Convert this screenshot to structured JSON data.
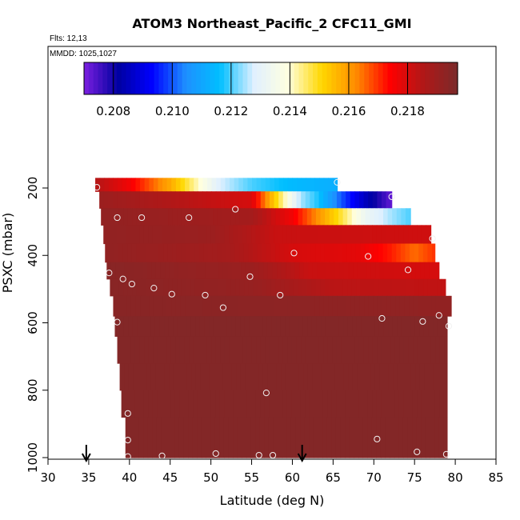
{
  "chart_data": {
    "type": "heatmap",
    "title": "ATOM3 Northeast_Pacific_2 CFC11_GMI",
    "annotations": [
      "Flts: 12,13",
      "MMDD: 1025,1027"
    ],
    "xlabel": "Latitude (deg N)",
    "ylabel": "PSXC (mbar)",
    "xlim": [
      30,
      85
    ],
    "ylim": [
      1000,
      0
    ],
    "xticks": [
      30,
      35,
      40,
      45,
      50,
      55,
      60,
      65,
      70,
      75,
      80,
      85
    ],
    "yticks": [
      200,
      400,
      600,
      800,
      1000
    ],
    "colorbar": {
      "min": 0.207,
      "max": 0.2197,
      "ticks": [
        0.208,
        0.21,
        0.212,
        0.214,
        0.216,
        0.218
      ],
      "tick_labels": [
        "0.208",
        "0.210",
        "0.212",
        "0.214",
        "0.216",
        "0.218"
      ],
      "colors": [
        "#7b1fe0",
        "#0000a0",
        "#0000ff",
        "#1e90ff",
        "#00bfff",
        "#e0f0ff",
        "#ffffe0",
        "#ffd700",
        "#ff8c00",
        "#ff0000",
        "#b01818",
        "#7a2a2a"
      ]
    },
    "flight_markers": [
      34.7,
      61.2
    ],
    "rows": [
      {
        "p_top": 170,
        "p_bot": 210,
        "lat_start": 35.8,
        "lat_end": 65.5,
        "stops": [
          [
            35.8,
            0.2185
          ],
          [
            40,
            0.2176
          ],
          [
            45,
            0.2158
          ],
          [
            48,
            0.2143
          ],
          [
            51,
            0.2128
          ],
          [
            55,
            0.212
          ],
          [
            60,
            0.2115
          ],
          [
            65.5,
            0.2112
          ]
        ]
      },
      {
        "p_top": 210,
        "p_bot": 260,
        "lat_start": 36.3,
        "lat_end": 72.2,
        "stops": [
          [
            36.3,
            0.219
          ],
          [
            55,
            0.218
          ],
          [
            57,
            0.216
          ],
          [
            59,
            0.2142
          ],
          [
            61,
            0.2125
          ],
          [
            63,
            0.2118
          ],
          [
            66,
            0.21
          ],
          [
            69,
            0.2085
          ],
          [
            71.5,
            0.2075
          ],
          [
            72.2,
            0.2072
          ]
        ]
      },
      {
        "p_top": 260,
        "p_bot": 310,
        "lat_start": 36.5,
        "lat_end": 74.5,
        "stops": [
          [
            36.5,
            0.2192
          ],
          [
            55,
            0.2188
          ],
          [
            60,
            0.2176
          ],
          [
            63,
            0.2162
          ],
          [
            66,
            0.2148
          ],
          [
            69,
            0.2132
          ],
          [
            72,
            0.2125
          ],
          [
            74.5,
            0.212
          ]
        ]
      },
      {
        "p_top": 310,
        "p_bot": 365,
        "lat_start": 36.8,
        "lat_end": 77.0,
        "stops": [
          [
            36.8,
            0.2192
          ],
          [
            50,
            0.219
          ],
          [
            58,
            0.2182
          ],
          [
            77.0,
            0.2181
          ]
        ]
      },
      {
        "p_top": 365,
        "p_bot": 420,
        "lat_start": 37.0,
        "lat_end": 77.5,
        "stops": [
          [
            37.0,
            0.2192
          ],
          [
            52,
            0.2188
          ],
          [
            60,
            0.218
          ],
          [
            68,
            0.2178
          ],
          [
            72,
            0.2172
          ],
          [
            75,
            0.2165
          ],
          [
            77.5,
            0.217
          ]
        ]
      },
      {
        "p_top": 420,
        "p_bot": 470,
        "lat_start": 37.2,
        "lat_end": 78.0,
        "stops": [
          [
            37.2,
            0.2194
          ],
          [
            55,
            0.219
          ],
          [
            62,
            0.2182
          ],
          [
            78.0,
            0.218
          ]
        ]
      },
      {
        "p_top": 470,
        "p_bot": 520,
        "lat_start": 37.6,
        "lat_end": 78.8,
        "stops": [
          [
            37.6,
            0.2194
          ],
          [
            55,
            0.2191
          ],
          [
            65,
            0.2184
          ],
          [
            78.8,
            0.2183
          ]
        ]
      },
      {
        "p_top": 520,
        "p_bot": 580,
        "lat_start": 38.0,
        "lat_end": 79.5,
        "stops": [
          [
            38.0,
            0.2194
          ],
          [
            79.5,
            0.2192
          ]
        ]
      },
      {
        "p_top": 580,
        "p_bot": 640,
        "lat_start": 38.2,
        "lat_end": 79.0,
        "stops": [
          [
            38.2,
            0.2195
          ],
          [
            79.0,
            0.2195
          ]
        ]
      },
      {
        "p_top": 640,
        "p_bot": 720,
        "lat_start": 38.5,
        "lat_end": 79.0,
        "stops": [
          [
            38.5,
            0.2195
          ],
          [
            79.0,
            0.2195
          ]
        ]
      },
      {
        "p_top": 720,
        "p_bot": 800,
        "lat_start": 38.8,
        "lat_end": 79.0,
        "stops": [
          [
            38.8,
            0.2195
          ],
          [
            79.0,
            0.2195
          ]
        ]
      },
      {
        "p_top": 800,
        "p_bot": 880,
        "lat_start": 39.0,
        "lat_end": 79.0,
        "stops": [
          [
            39.0,
            0.2195
          ],
          [
            79.0,
            0.2195
          ]
        ]
      },
      {
        "p_top": 880,
        "p_bot": 1000,
        "lat_start": 39.5,
        "lat_end": 79.0,
        "stops": [
          [
            39.5,
            0.2195
          ],
          [
            79.0,
            0.2195
          ]
        ]
      }
    ],
    "points": [
      [
        36.0,
        198
      ],
      [
        65.5,
        183
      ],
      [
        72.2,
        226
      ],
      [
        53.0,
        263
      ],
      [
        38.5,
        288
      ],
      [
        41.5,
        288
      ],
      [
        47.3,
        288
      ],
      [
        77.2,
        350
      ],
      [
        60.2,
        393
      ],
      [
        69.3,
        403
      ],
      [
        74.2,
        443
      ],
      [
        37.5,
        452
      ],
      [
        39.2,
        470
      ],
      [
        40.3,
        485
      ],
      [
        43.0,
        497
      ],
      [
        45.2,
        515
      ],
      [
        49.3,
        518
      ],
      [
        54.8,
        463
      ],
      [
        58.5,
        518
      ],
      [
        51.5,
        555
      ],
      [
        71.0,
        587
      ],
      [
        76.0,
        596
      ],
      [
        78.0,
        578
      ],
      [
        38.5,
        598
      ],
      [
        79.2,
        610
      ],
      [
        56.8,
        808
      ],
      [
        39.8,
        869
      ],
      [
        39.8,
        948
      ],
      [
        70.4,
        945
      ],
      [
        39.8,
        997
      ],
      [
        44.0,
        995
      ],
      [
        50.6,
        988
      ],
      [
        55.9,
        993
      ],
      [
        57.6,
        993
      ],
      [
        75.3,
        983
      ],
      [
        78.9,
        990
      ]
    ]
  }
}
